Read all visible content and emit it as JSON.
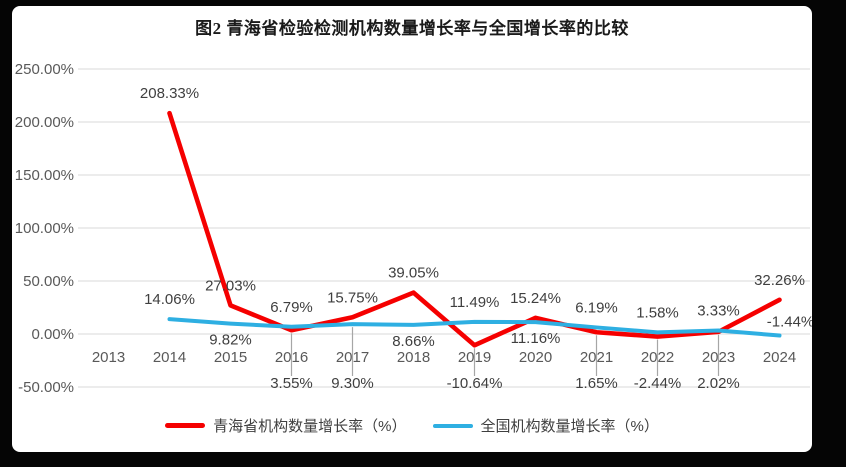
{
  "frame": {
    "border_color": "#050505",
    "card_color": "#ffffff"
  },
  "chart": {
    "title": "图2 青海省检验检测机构数量增长率与全国增长率的比较",
    "legend": [
      {
        "label": "青海省机构数量增长率（%）",
        "color": "#f50000"
      },
      {
        "label": "全国机构数量增长率（%）",
        "color": "#2eafe2"
      }
    ]
  },
  "chart_data": {
    "type": "line",
    "title": "图2 青海省检验检测机构数量增长率与全国增长率的比较",
    "categories": [
      "2013",
      "2014",
      "2015",
      "2016",
      "2017",
      "2018",
      "2019",
      "2020",
      "2021",
      "2022",
      "2023",
      "2024"
    ],
    "ylim": [
      -50,
      250
    ],
    "grid": true,
    "legend_position": "bottom",
    "gridline_color": "#d9d9d9",
    "leader_line_color": "#a6a6a6",
    "axis_text_color": "#595959",
    "data_label_color": "#3f3f3f",
    "y_ticks": [
      {
        "label": "250.00%",
        "value": 250
      },
      {
        "label": "200.00%",
        "value": 200
      },
      {
        "label": "150.00%",
        "value": 150
      },
      {
        "label": "100.00%",
        "value": 100
      },
      {
        "label": "50.00%",
        "value": 50
      },
      {
        "label": "0.00%",
        "value": 0
      },
      {
        "label": "-50.00%",
        "value": -50
      }
    ],
    "series": [
      {
        "name": "青海省机构数量增长率（%）",
        "color": "#f50000",
        "stroke_width": 4.6,
        "values": [
          null,
          208.33,
          27.03,
          3.55,
          15.75,
          39.05,
          -10.64,
          15.24,
          1.65,
          -2.44,
          2.02,
          32.26
        ],
        "labels": [
          null,
          "208.33%",
          "27.03%",
          "3.55%",
          "15.75%",
          "39.05%",
          "-10.64%",
          "15.24%",
          "1.65%",
          "-2.44%",
          "2.02%",
          "32.26%"
        ],
        "label_pos": [
          null,
          "above",
          "above",
          "below-leader",
          "above",
          "above",
          "below-leader",
          "above",
          "below-leader",
          "below-leader",
          "below-leader",
          "above"
        ]
      },
      {
        "name": "全国机构数量增长率（%）",
        "color": "#2eafe2",
        "stroke_width": 4,
        "values": [
          null,
          14.06,
          9.82,
          6.79,
          9.3,
          8.66,
          11.49,
          11.16,
          6.19,
          1.58,
          3.33,
          -1.44
        ],
        "labels": [
          null,
          "14.06%",
          "9.82%",
          "6.79%",
          "9.30%",
          "8.66%",
          "11.49%",
          "11.16%",
          "6.19%",
          "1.58%",
          "3.33%",
          "-1.44%"
        ],
        "label_pos": [
          null,
          "above",
          "below",
          "above",
          "below-leader",
          "below",
          "above",
          "below",
          "above",
          "above",
          "above",
          "right"
        ]
      }
    ]
  }
}
